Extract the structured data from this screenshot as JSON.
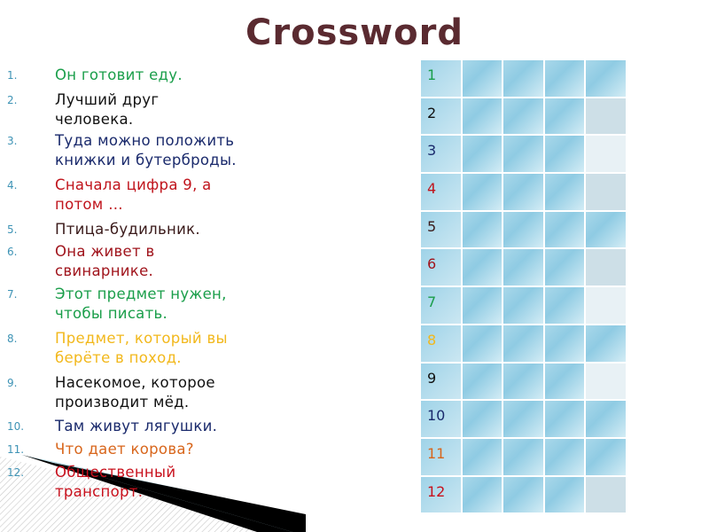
{
  "title": "Crossword",
  "clues": [
    {
      "num": "1.",
      "text": "Он готовит еду.",
      "color": "#1a9e4a"
    },
    {
      "num": "2.",
      "text": "Лучший друг\nчеловека.",
      "color": "#111111"
    },
    {
      "num": "3.",
      "text": "Туда можно положить\nкнижки и бутерброды.",
      "color": "#1a2a6c"
    },
    {
      "num": "4.",
      "text": "Сначала цифра 9, а\nпотом …",
      "color": "#c0141c"
    },
    {
      "num": "5.",
      "text": "Птица-будильник.",
      "color": "#3a1a1a"
    },
    {
      "num": "6.",
      "text": "Она живет в\nсвинарнике.",
      "color": "#a0141c"
    },
    {
      "num": "7.",
      "text": "Этот предмет нужен,\nчтобы писать.",
      "color": "#1a9e4a"
    },
    {
      "num": "8.",
      "text": "Предмет, который вы\nберёте в поход.",
      "color": "#f2b81c"
    },
    {
      "num": "9.",
      "text": "Насекомое, которое\nпроизводит мёд.",
      "color": "#111111"
    },
    {
      "num": "10.",
      "text": "Там живут лягушки.",
      "color": "#1a2a6c"
    },
    {
      "num": "11.",
      "text": "Что дает корова?",
      "color": "#d8661c"
    },
    {
      "num": "12.",
      "text": "Общественный\nтранспорт.",
      "color": "#c8101c"
    }
  ],
  "grid": {
    "rows": [
      {
        "label": "1",
        "color": "#1a9e4a",
        "last": "blue"
      },
      {
        "label": "2",
        "color": "#111111",
        "last": "gray"
      },
      {
        "label": "3",
        "color": "#1a2a6c",
        "last": "light"
      },
      {
        "label": "4",
        "color": "#c0141c",
        "last": "gray"
      },
      {
        "label": "5",
        "color": "#3a1a1a",
        "last": "blue"
      },
      {
        "label": "6",
        "color": "#a0141c",
        "last": "gray"
      },
      {
        "label": "7",
        "color": "#1a9e4a",
        "last": "light"
      },
      {
        "label": "8",
        "color": "#f2b81c",
        "last": "blue"
      },
      {
        "label": "9",
        "color": "#111111",
        "last": "light"
      },
      {
        "label": "10",
        "color": "#1a2a6c",
        "last": "blue"
      },
      {
        "label": "11",
        "color": "#d8661c",
        "last": "blue"
      },
      {
        "label": "12",
        "color": "#c8101c",
        "last": "gray"
      }
    ]
  }
}
